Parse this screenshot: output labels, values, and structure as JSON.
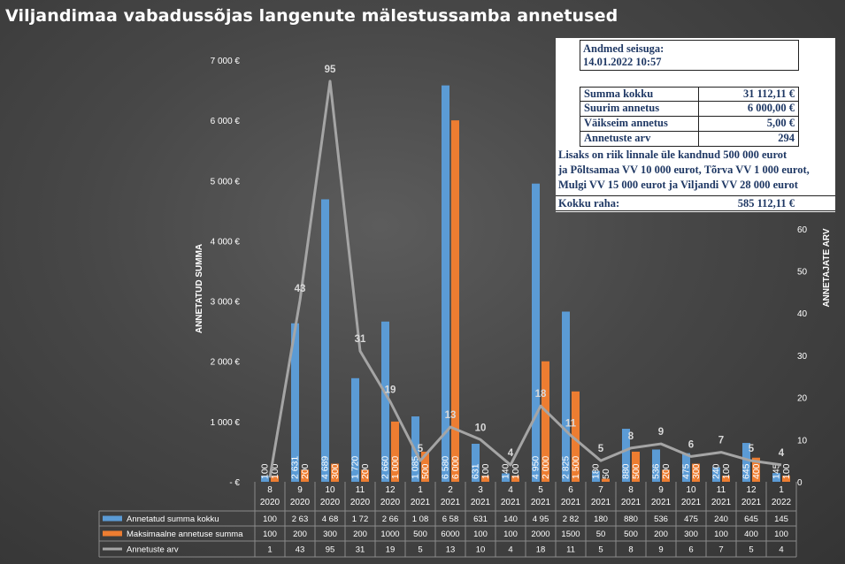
{
  "title": "Viljandimaa vabadussõjas langenute mälestussamba annetused",
  "info": {
    "header_line1": "Andmed seisuga:",
    "header_line2": "14.01.2022 10:57",
    "rows": [
      {
        "label": "Summa kokku",
        "value": "31 112,11 €"
      },
      {
        "label": "Suurim annetus",
        "value": "6 000,00 €"
      },
      {
        "label": "Väikseim annetus",
        "value": "5,00 €"
      },
      {
        "label": "Annetuste arv",
        "value": "294"
      }
    ],
    "note_line1": "Lisaks on riik linnale üle kandnud 500 000 eurot",
    "note_line2": "ja Põltsamaa VV 10 000 eurot, Tõrva VV 1 000 eurot,",
    "note_line3": "Mulgi VV 15 000 eurot ja Viljandi VV 28 000 eurot",
    "total_label": "Kokku raha:",
    "total_value": "585 112,11 €"
  },
  "colors": {
    "blue": "#5b9bd5",
    "orange": "#ed7d31",
    "gray": "#a5a5a5"
  },
  "chart_data": {
    "type": "bar",
    "title": "Viljandimaa vabadussõjas langenute mälestussamba annetused",
    "ylabel": "ANNETATUD SUMMA",
    "y2label": "ANNETAJATE ARV",
    "ylim": [
      0,
      7000
    ],
    "y2lim": [
      0,
      100
    ],
    "yticks": [
      "-  €",
      "1 000 €",
      "2 000 €",
      "3 000 €",
      "4 000 €",
      "5 000 €",
      "6 000 €",
      "7 000 €"
    ],
    "y2ticks": [
      "0",
      "10",
      "20",
      "30",
      "40",
      "50",
      "60"
    ],
    "grid": false,
    "categories": [
      [
        "8",
        "2020"
      ],
      [
        "9",
        "2020"
      ],
      [
        "10",
        "2020"
      ],
      [
        "11",
        "2020"
      ],
      [
        "12",
        "2020"
      ],
      [
        "1",
        "2021"
      ],
      [
        "2",
        "2021"
      ],
      [
        "3",
        "2021"
      ],
      [
        "4",
        "2021"
      ],
      [
        "5",
        "2021"
      ],
      [
        "6",
        "2021"
      ],
      [
        "7",
        "2021"
      ],
      [
        "8",
        "2021"
      ],
      [
        "9",
        "2021"
      ],
      [
        "10",
        "2021"
      ],
      [
        "11",
        "2021"
      ],
      [
        "12",
        "2021"
      ],
      [
        "1",
        "2022"
      ]
    ],
    "series": [
      {
        "name": "Annetatud summa kokku",
        "type": "bar",
        "axis": "left",
        "values": [
          100,
          2631,
          4689,
          1720,
          2660,
          1085,
          6580,
          631,
          140,
          4950,
          2825,
          180,
          880,
          536,
          475,
          240,
          645,
          145
        ],
        "labels": [
          "100",
          "2 631",
          "4 689",
          "1 720",
          "2 660",
          "1 085",
          "6 580",
          "631",
          "140",
          "4 950",
          "2 825",
          "180",
          "880",
          "536",
          "475",
          "240",
          "645",
          "145"
        ],
        "table": [
          "100",
          "2 63",
          "4 68",
          "1 72",
          "2 66",
          "1 08",
          "6 58",
          "631",
          "140",
          "4 95",
          "2 82",
          "180",
          "880",
          "536",
          "475",
          "240",
          "645",
          "145"
        ]
      },
      {
        "name": "Maksimaalne annetuse summa",
        "type": "bar",
        "axis": "left",
        "values": [
          100,
          200,
          300,
          200,
          1000,
          500,
          6000,
          100,
          100,
          2000,
          1500,
          50,
          500,
          200,
          300,
          100,
          400,
          100
        ],
        "labels": [
          "100",
          "200",
          "300",
          "200",
          "1 000",
          "500",
          "6 000",
          "100",
          "100",
          "2 000",
          "1 500",
          "50",
          "500",
          "200",
          "300",
          "100",
          "400",
          "100"
        ],
        "table": [
          "100",
          "200",
          "300",
          "200",
          "1000",
          "500",
          "6000",
          "100",
          "100",
          "2000",
          "1500",
          "50",
          "500",
          "200",
          "300",
          "100",
          "400",
          "100"
        ]
      },
      {
        "name": "Annetuste arv",
        "type": "line",
        "axis": "right",
        "values": [
          1,
          43,
          95,
          31,
          19,
          5,
          13,
          10,
          4,
          18,
          11,
          5,
          8,
          9,
          6,
          7,
          5,
          4
        ],
        "labels": [
          "",
          "43",
          "95",
          "31",
          "19",
          "5",
          "13",
          "10",
          "4",
          "18",
          "11",
          "5",
          "8",
          "9",
          "6",
          "7",
          "5",
          "4"
        ],
        "table": [
          "1",
          "43",
          "95",
          "31",
          "19",
          "5",
          "13",
          "10",
          "4",
          "18",
          "11",
          "5",
          "8",
          "9",
          "6",
          "7",
          "5",
          "4"
        ]
      }
    ]
  }
}
